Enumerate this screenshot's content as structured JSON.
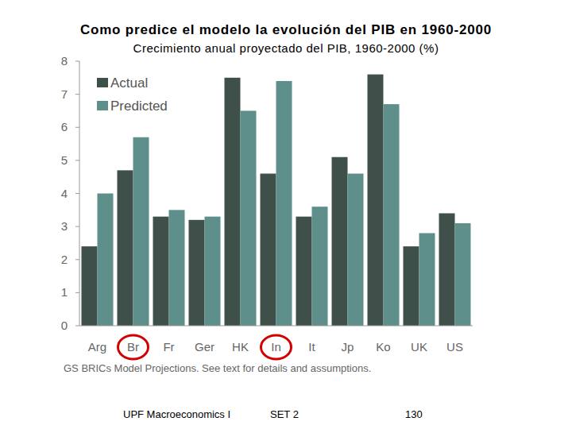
{
  "chart_data": {
    "type": "bar",
    "title": "Como predice el modelo la evolución del PIB en 1960-2000",
    "subtitle": "Crecimiento anual proyectado del PIB, 1960-2000 (%)",
    "categories": [
      "Arg",
      "Br",
      "Fr",
      "Ger",
      "HK",
      "In",
      "It",
      "Jp",
      "Ko",
      "UK",
      "US"
    ],
    "series": [
      {
        "name": "Actual",
        "color": "#3e5049",
        "values": [
          2.4,
          4.7,
          3.3,
          3.2,
          7.5,
          4.6,
          3.3,
          5.1,
          7.6,
          2.4,
          3.4
        ]
      },
      {
        "name": "Predicted",
        "color": "#5e8f8a",
        "values": [
          4.0,
          5.7,
          3.5,
          3.3,
          6.5,
          7.4,
          3.6,
          4.6,
          6.7,
          2.8,
          3.1
        ]
      }
    ],
    "ylim": [
      0,
      8
    ],
    "yticks": [
      0,
      1,
      2,
      3,
      4,
      5,
      6,
      7,
      8
    ],
    "grid": false,
    "legend": "upper left",
    "note": "GS BRICs Model Projections. See text for details and assumptions."
  },
  "footer": {
    "course": "UPF Macroeconomics I",
    "set": "SET 2",
    "page": "130"
  }
}
